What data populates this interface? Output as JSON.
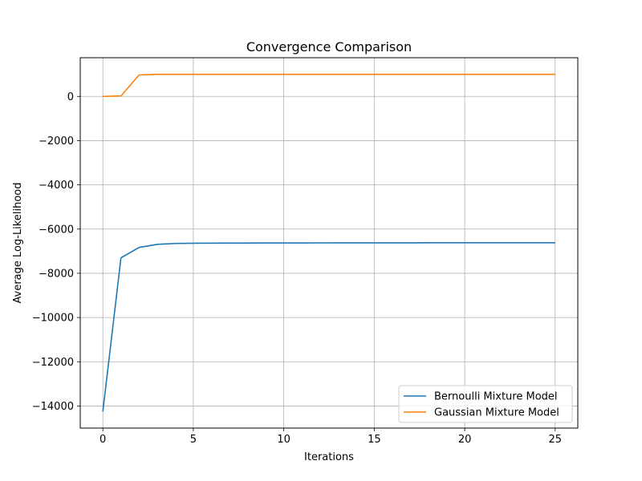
{
  "chart_data": {
    "type": "line",
    "title": "Convergence Comparison",
    "xlabel": "Iterations",
    "ylabel": "Average Log-Likelihood",
    "xlim": [
      -1.25,
      26.25
    ],
    "ylim": [
      -15000,
      1750
    ],
    "xticks": [
      0,
      5,
      10,
      15,
      20,
      25
    ],
    "yticks": [
      0,
      -2000,
      -4000,
      -6000,
      -8000,
      -10000,
      -12000,
      -14000
    ],
    "ytick_labels": [
      "0",
      "−2000",
      "−4000",
      "−6000",
      "−8000",
      "−10000",
      "−12000",
      "−14000"
    ],
    "grid": true,
    "legend_position": "lower-right",
    "x": [
      0,
      1,
      2,
      3,
      4,
      5,
      6,
      7,
      8,
      9,
      10,
      11,
      12,
      13,
      14,
      15,
      16,
      17,
      18,
      19,
      20,
      21,
      22,
      23,
      24,
      25
    ],
    "series": [
      {
        "name": "Bernoulli Mixture Model",
        "color": "#1f77b4",
        "values": [
          -14250,
          -7300,
          -6830,
          -6690,
          -6650,
          -6640,
          -6635,
          -6632,
          -6630,
          -6628,
          -6627,
          -6626,
          -6625,
          -6624,
          -6623,
          -6622,
          -6621,
          -6621,
          -6620,
          -6620,
          -6620,
          -6620,
          -6620,
          -6620,
          -6620,
          -6620
        ]
      },
      {
        "name": "Gaussian Mixture Model",
        "color": "#ff7f0e",
        "values": [
          0,
          20,
          970,
          1000,
          1000,
          1000,
          1000,
          1000,
          1000,
          1000,
          1000,
          1000,
          1000,
          1000,
          1000,
          1000,
          1000,
          1000,
          1000,
          1000,
          1000,
          1000,
          1000,
          1000,
          1000,
          1000
        ]
      }
    ]
  }
}
